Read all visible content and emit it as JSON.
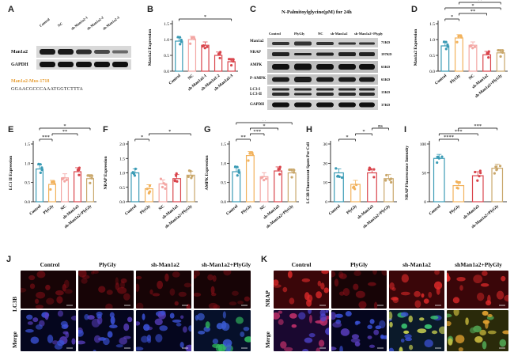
{
  "panel_labels": [
    "A",
    "B",
    "C",
    "D",
    "E",
    "F",
    "G",
    "H",
    "I",
    "J",
    "K"
  ],
  "colors": {
    "control": "#3a9bb5",
    "plygly": "#f2b25c",
    "nc": "#f3a6a3",
    "shman": "#d9444b",
    "shman_plygly": "#c9a76b",
    "shman_nrap": "#a62a3a"
  },
  "panel_a": {
    "lanes": [
      "Control",
      "NC",
      "sh-Man1a2-1",
      "sh-Man1a2-2",
      "sh-Man1a2-3"
    ],
    "rows": [
      "Man1a2",
      "GAPDH"
    ],
    "seq_title": "Man1a2-Mus-1718",
    "seq": "GGAACGCCCAAATGGTCTTTA"
  },
  "panel_c": {
    "title": "N-Palmitoylglycine(μM) for 24h",
    "lanes": [
      "Control",
      "PlyGly",
      "NC",
      "sh-Man1a2",
      "sh-Man1a2+Plygly"
    ],
    "rows": [
      "Man1a2",
      "NRAP",
      "AMPK",
      "P-AMPK",
      "LC3-I",
      "LC3-II",
      "GAPDH"
    ],
    "sizes": [
      "71KD",
      "197KD",
      "63KD",
      "63KD",
      "",
      "15KD",
      "37KD"
    ]
  },
  "chart_data": [
    {
      "panel": "B",
      "type": "bar",
      "ylabel": "Man1a2 Expression",
      "categories": [
        "Control",
        "NC",
        "sh-Man1a2-1",
        "sh-Man1a2-2",
        "sh-Man1a2-3"
      ],
      "values": [
        0.95,
        1.0,
        0.82,
        0.5,
        0.3
      ],
      "ylim": [
        0,
        1.5
      ],
      "yticks": [
        "0.0",
        "0.5",
        "1.0",
        "1.5"
      ],
      "sig": [
        {
          "a": 0,
          "b": 4,
          "t": "*"
        }
      ]
    },
    {
      "panel": "D",
      "type": "bar",
      "ylabel": "Man1a2 Expression",
      "categories": [
        "Control",
        "PlyGly",
        "NC",
        "sh-Man1a2",
        "sh-Man1a2+PlyGly"
      ],
      "values": [
        0.8,
        1.05,
        0.82,
        0.52,
        0.58
      ],
      "ylim": [
        0,
        1.5
      ],
      "yticks": [
        "0.0",
        "0.5",
        "1.0",
        "1.5"
      ],
      "sig": [
        {
          "a": 0,
          "b": 1,
          "t": "*"
        },
        {
          "a": 1,
          "b": 3,
          "t": "**"
        },
        {
          "a": 0,
          "b": 4,
          "t": "*"
        },
        {
          "a": 1,
          "b": 4,
          "t": "**"
        }
      ]
    },
    {
      "panel": "E",
      "type": "bar",
      "ylabel": "LC3 II Expression",
      "categories": [
        "Control",
        "PlyGly",
        "NC",
        "sh-Man1a2",
        "sh-Man1a2+PlyGly"
      ],
      "values": [
        0.85,
        0.45,
        0.62,
        0.78,
        0.6
      ],
      "ylim": [
        0,
        1.5
      ],
      "yticks": [
        "0.0",
        "0.5",
        "1.0",
        "1.5"
      ],
      "sig": [
        {
          "a": 0,
          "b": 1,
          "t": "***"
        },
        {
          "a": 1,
          "b": 3,
          "t": "**"
        },
        {
          "a": 0,
          "b": 4,
          "t": "*"
        }
      ]
    },
    {
      "panel": "F",
      "type": "bar",
      "ylabel": "NRAP Expression",
      "categories": [
        "Control",
        "PlyGly",
        "NC",
        "sh-Man1a2",
        "sh-Man1a2+PlyGly"
      ],
      "values": [
        1.0,
        0.45,
        0.62,
        0.8,
        0.92
      ],
      "ylim": [
        0,
        2.0
      ],
      "yticks": [
        "0.0",
        "0.5",
        "1.0",
        "1.5",
        "2.0"
      ],
      "sig": [
        {
          "a": 0,
          "b": 1,
          "t": "*"
        },
        {
          "a": 1,
          "b": 4,
          "t": "*"
        }
      ]
    },
    {
      "panel": "G",
      "type": "bar",
      "ylabel": "AMPK Expression",
      "categories": [
        "Control",
        "PlyGly",
        "NC",
        "sh-Man1a2",
        "sh-Man1a2+PlyGly"
      ],
      "values": [
        0.78,
        1.2,
        0.65,
        0.8,
        0.75
      ],
      "ylim": [
        0,
        1.5
      ],
      "yticks": [
        "0.0",
        "0.5",
        "1.0",
        "1.5"
      ],
      "sig": [
        {
          "a": 0,
          "b": 1,
          "t": "**"
        },
        {
          "a": 1,
          "b": 2,
          "t": "***"
        },
        {
          "a": 1,
          "b": 3,
          "t": "*"
        },
        {
          "a": 0,
          "b": 4,
          "t": "**"
        }
      ]
    },
    {
      "panel": "H",
      "type": "bar",
      "ylabel": "LC3B Fluorescent Spots Per Cell",
      "categories": [
        "Control",
        "PlyGly",
        "sh-Man1a2",
        "sh-Man1a2+PlyGly"
      ],
      "values": [
        15,
        9,
        15,
        12
      ],
      "ylim": [
        0,
        30
      ],
      "yticks": [
        "0",
        "10",
        "20",
        "30"
      ],
      "sig": [
        {
          "a": 0,
          "b": 1,
          "t": "*"
        },
        {
          "a": 1,
          "b": 2,
          "t": "*"
        },
        {
          "a": 2,
          "b": 3,
          "t": "ns"
        }
      ]
    },
    {
      "panel": "I",
      "type": "bar",
      "ylabel": "NRAP Fluorescence Intensity",
      "categories": [
        "Control",
        "PlyGly",
        "sh-Man1a2",
        "sh-Man1a2+PlyGly"
      ],
      "values": [
        75,
        28,
        45,
        58
      ],
      "ylim": [
        0,
        100
      ],
      "yticks": [
        "0",
        "50",
        "100"
      ],
      "sig": [
        {
          "a": 0,
          "b": 1,
          "t": "****"
        },
        {
          "a": 0,
          "b": 2,
          "t": "***"
        },
        {
          "a": 1,
          "b": 3,
          "t": "***"
        }
      ]
    }
  ],
  "panel_j": {
    "columns": [
      "Control",
      "PlyGly",
      "sh-Man1a2",
      "sh-Man1a2+PlyGly"
    ],
    "rows": [
      "LC3B",
      "Merge"
    ]
  },
  "panel_k": {
    "columns": [
      "Control",
      "PlyGly",
      "sh-Man1a2",
      "shMan1a2+PlyGly"
    ],
    "rows": [
      "NRAP",
      "Merge"
    ]
  }
}
